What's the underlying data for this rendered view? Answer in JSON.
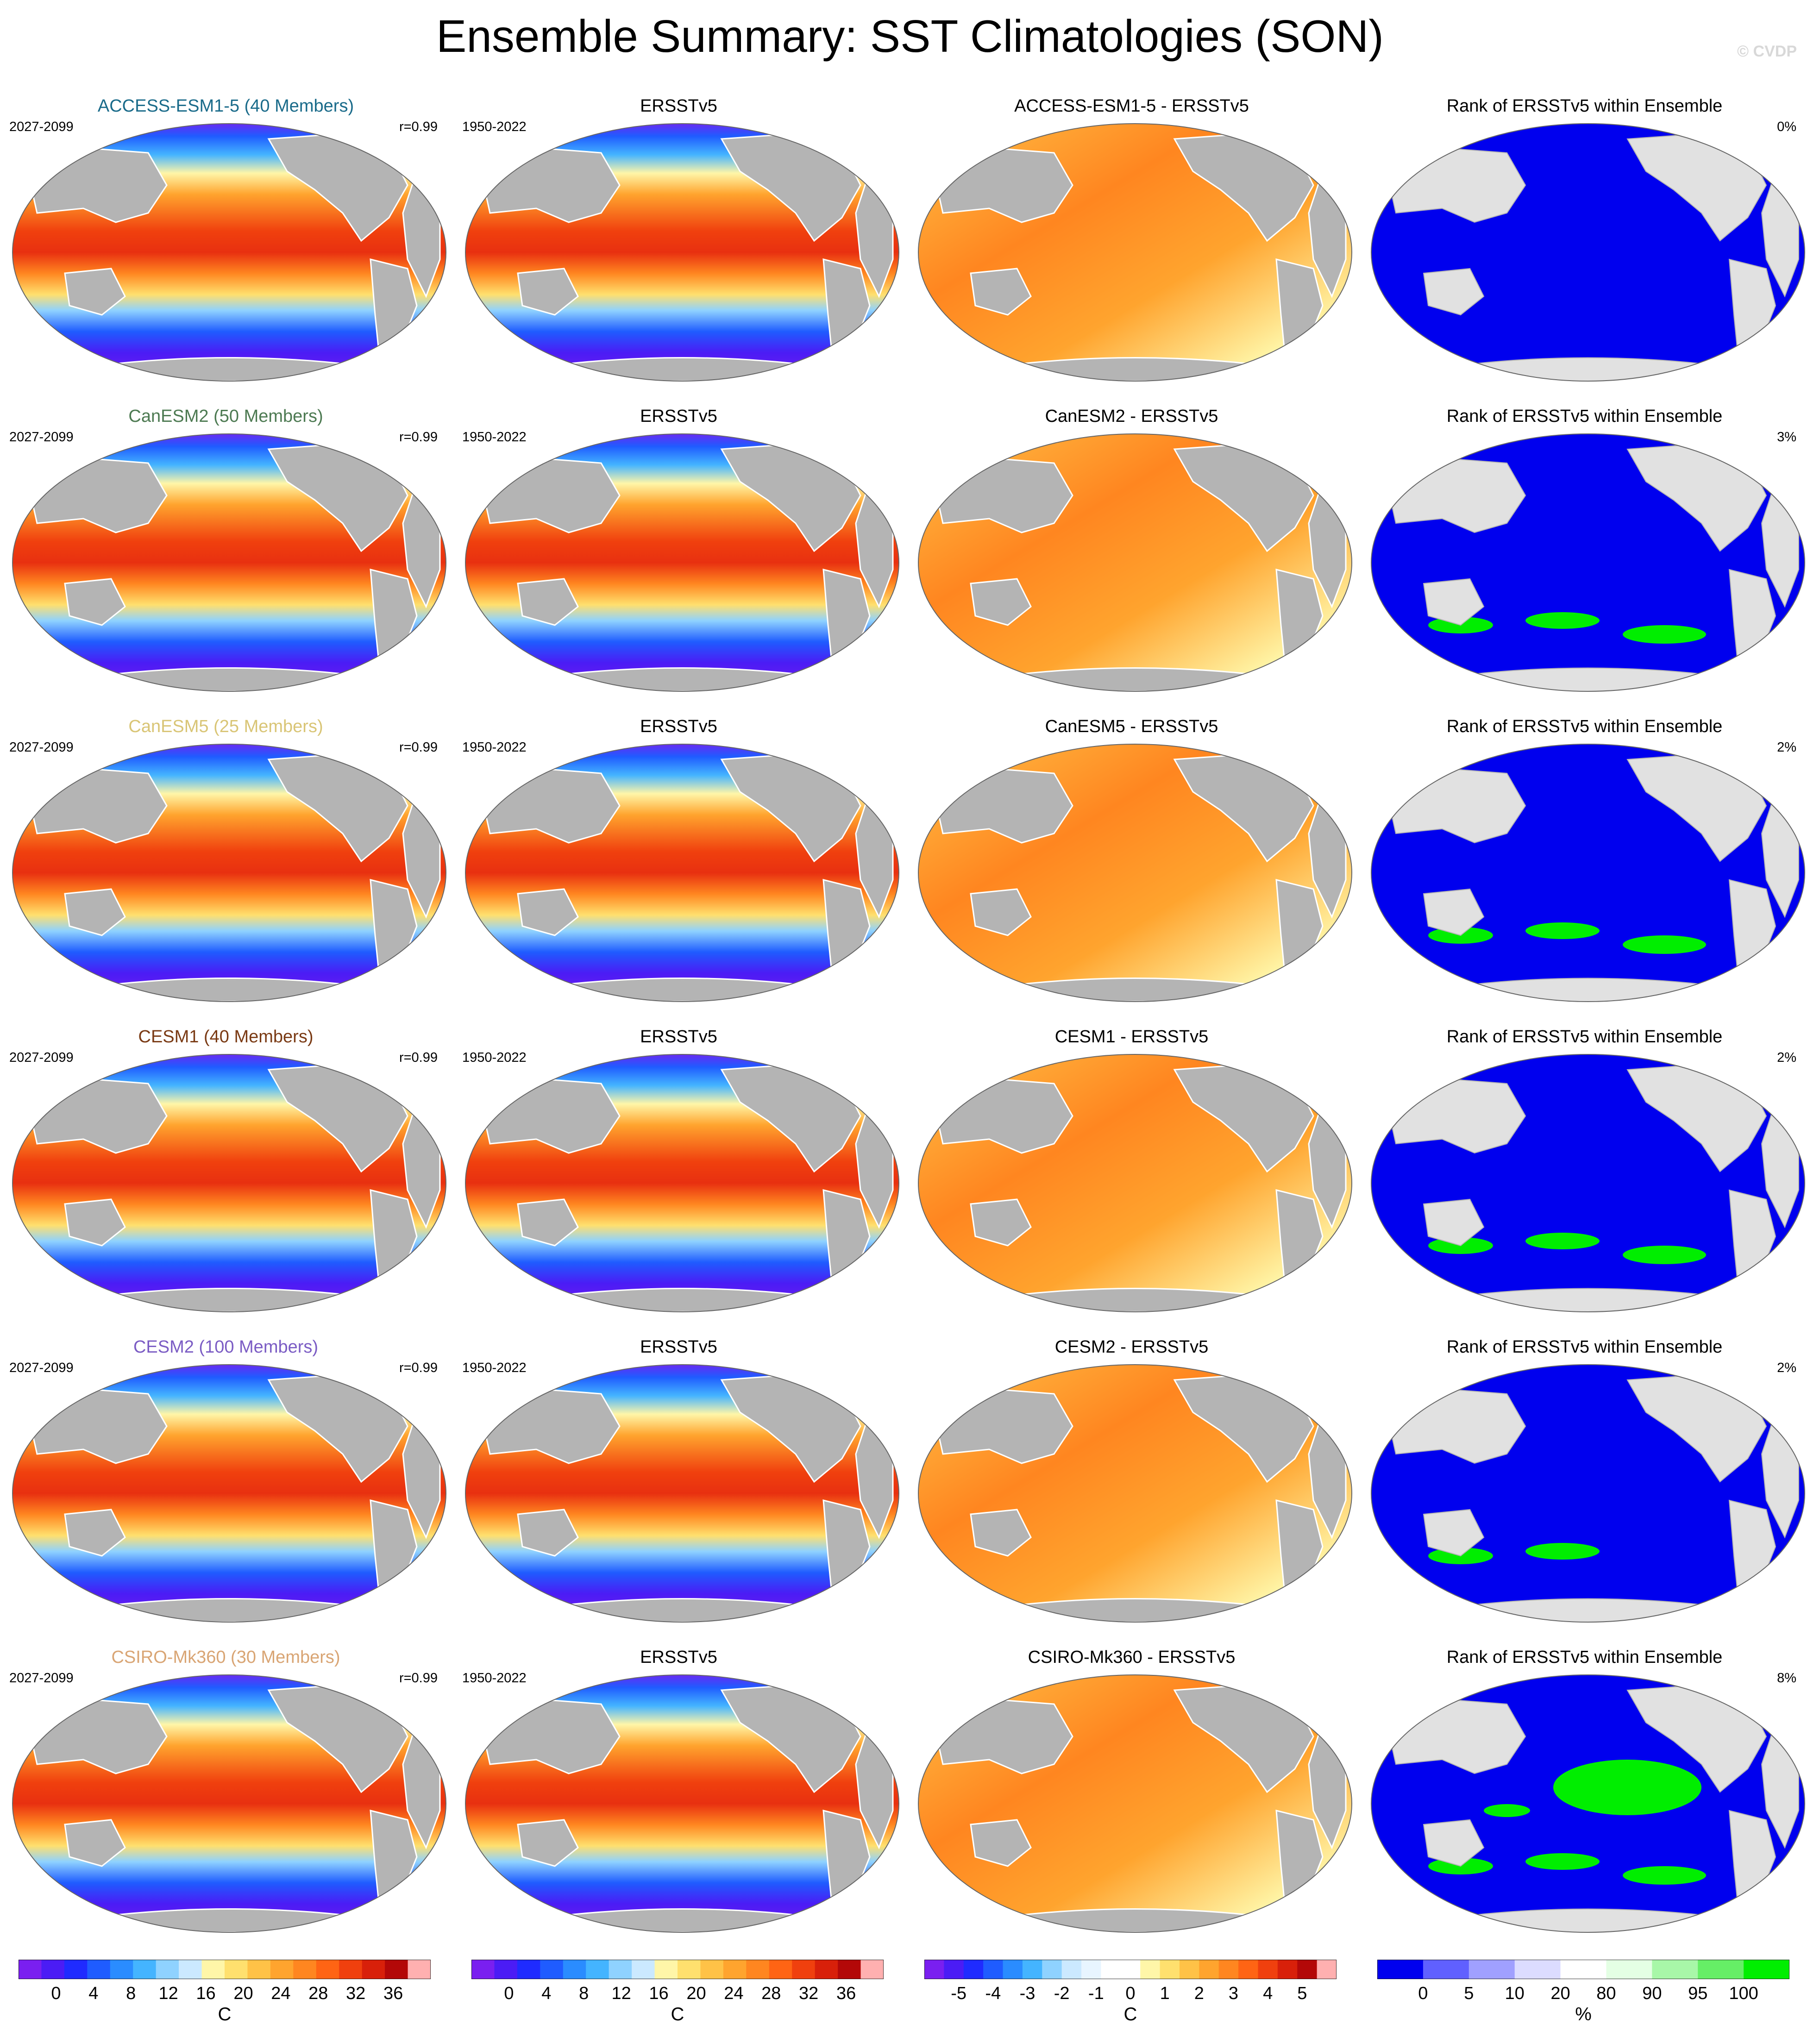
{
  "title": "Ensemble Summary: SST Climatologies (SON)",
  "copyright": "© CVDP",
  "colors": {
    "land_sst": "#b4b4b4",
    "land_rank": "#e1e1e1",
    "rank_blue": "#0000ee",
    "rank_green": "#00ee00"
  },
  "rows": [
    {
      "model": "ACCESS-ESM1-5 (40 Members)",
      "model_color": "#1a6b8a",
      "model_years": "2027-2099",
      "r": "r=0.99",
      "obs": "ERSSTv5",
      "obs_years": "1950-2022",
      "diff": "ACCESS-ESM1-5 - ERSSTv5",
      "rank_title": "Rank of ERSSTv5 within Ensemble",
      "rank_pct": "0%"
    },
    {
      "model": "CanESM2 (50 Members)",
      "model_color": "#4d7a52",
      "model_years": "2027-2099",
      "r": "r=0.99",
      "obs": "ERSSTv5",
      "obs_years": "1950-2022",
      "diff": "CanESM2 - ERSSTv5",
      "rank_title": "Rank of ERSSTv5 within Ensemble",
      "rank_pct": "3%"
    },
    {
      "model": "CanESM5 (25 Members)",
      "model_color": "#d9c576",
      "model_years": "2027-2099",
      "r": "r=0.99",
      "obs": "ERSSTv5",
      "obs_years": "1950-2022",
      "diff": "CanESM5 - ERSSTv5",
      "rank_title": "Rank of ERSSTv5 within Ensemble",
      "rank_pct": "2%"
    },
    {
      "model": "CESM1 (40 Members)",
      "model_color": "#7a3a14",
      "model_years": "2027-2099",
      "r": "r=0.99",
      "obs": "ERSSTv5",
      "obs_years": "1950-2022",
      "diff": "CESM1 - ERSSTv5",
      "rank_title": "Rank of ERSSTv5 within Ensemble",
      "rank_pct": "2%"
    },
    {
      "model": "CESM2 (100 Members)",
      "model_color": "#7b5cc4",
      "model_years": "2027-2099",
      "r": "r=0.99",
      "obs": "ERSSTv5",
      "obs_years": "1950-2022",
      "diff": "CESM2 - ERSSTv5",
      "rank_title": "Rank of ERSSTv5 within Ensemble",
      "rank_pct": "2%"
    },
    {
      "model": "CSIRO-Mk360 (30 Members)",
      "model_color": "#d9a574",
      "model_years": "2027-2099",
      "r": "r=0.99",
      "obs": "ERSSTv5",
      "obs_years": "1950-2022",
      "diff": "CSIRO-Mk360 - ERSSTv5",
      "rank_title": "Rank of ERSSTv5 within Ensemble",
      "rank_pct": "8%"
    }
  ],
  "colorbars": [
    {
      "unit": "C",
      "ticks": [
        "0",
        "4",
        "8",
        "12",
        "16",
        "20",
        "24",
        "28",
        "32",
        "36"
      ],
      "colors": [
        "#7a1ff0",
        "#4b1cf5",
        "#1f2bff",
        "#1f5cff",
        "#2a8cff",
        "#44b4ff",
        "#8fd2ff",
        "#cbe9ff",
        "#fff6a8",
        "#ffe06e",
        "#ffc247",
        "#ffa42e",
        "#ff8620",
        "#ff6414",
        "#f0400e",
        "#d8200a",
        "#b30808",
        "#ffb0b0"
      ]
    },
    {
      "unit": "C",
      "ticks": [
        "0",
        "4",
        "8",
        "12",
        "16",
        "20",
        "24",
        "28",
        "32",
        "36"
      ],
      "colors": [
        "#7a1ff0",
        "#4b1cf5",
        "#1f2bff",
        "#1f5cff",
        "#2a8cff",
        "#44b4ff",
        "#8fd2ff",
        "#cbe9ff",
        "#fff6a8",
        "#ffe06e",
        "#ffc247",
        "#ffa42e",
        "#ff8620",
        "#ff6414",
        "#f0400e",
        "#d8200a",
        "#b30808",
        "#ffb0b0"
      ]
    },
    {
      "unit": "C",
      "ticks": [
        "-5",
        "-4",
        "-3",
        "-2",
        "-1",
        "0",
        "1",
        "2",
        "3",
        "4",
        "5"
      ],
      "colors": [
        "#7a1ff0",
        "#4b1cf5",
        "#1f2bff",
        "#1f5cff",
        "#2a8cff",
        "#44b4ff",
        "#8fd2ff",
        "#cbe9ff",
        "#e8f5ff",
        "#ffffff",
        "#ffffff",
        "#fff6a8",
        "#ffe06e",
        "#ffc247",
        "#ffa42e",
        "#ff8620",
        "#ff6414",
        "#f0400e",
        "#d8200a",
        "#b30808",
        "#ffb0b0"
      ]
    },
    {
      "unit": "%",
      "ticks": [
        "0",
        "5",
        "10",
        "20",
        "80",
        "90",
        "95",
        "100"
      ],
      "colors": [
        "#0000ee",
        "#6060ff",
        "#a0a0ff",
        "#dcdcff",
        "#ffffff",
        "#e4ffe4",
        "#a8f7a8",
        "#66ee66",
        "#00ee00"
      ]
    }
  ]
}
